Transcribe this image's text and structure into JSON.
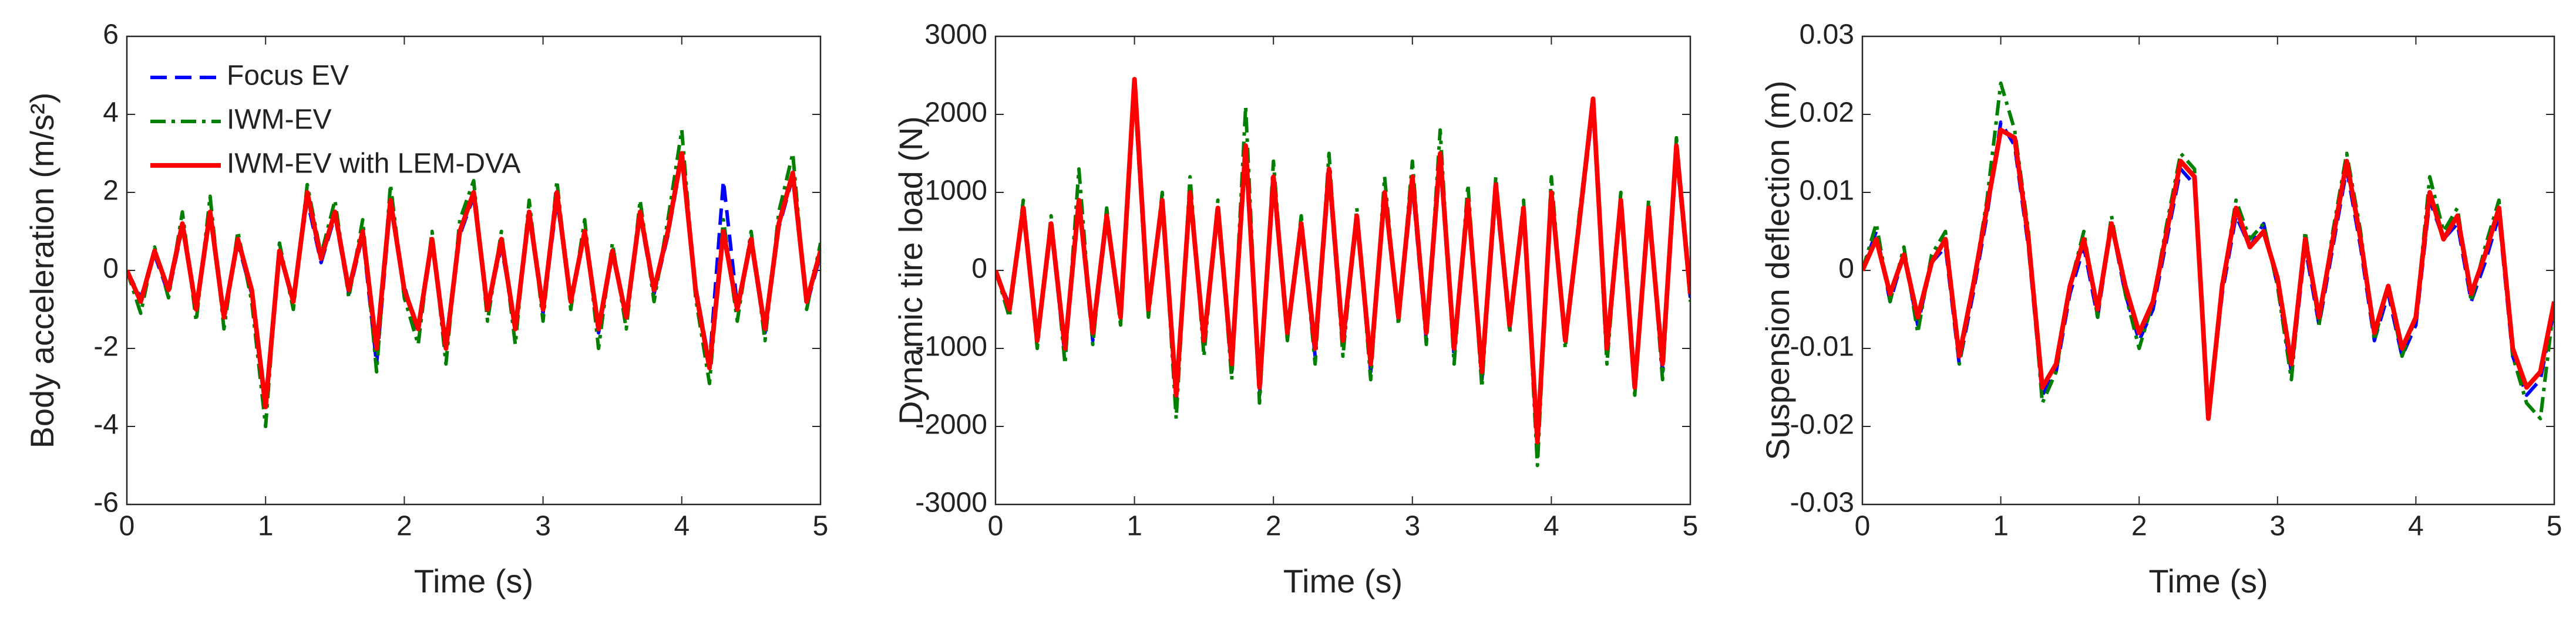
{
  "chart_data": [
    {
      "type": "line",
      "y_label": "Body acceleration (m/s²)",
      "x_label": "Time (s)",
      "xlim": [
        0,
        5
      ],
      "xticks": [
        0,
        1,
        2,
        3,
        4,
        5
      ],
      "ylim": [
        -6,
        6
      ],
      "yticks": [
        -6,
        -4,
        -2,
        0,
        2,
        4,
        6
      ],
      "legend": "upper left",
      "x": [
        0,
        0.1,
        0.2,
        0.3,
        0.4,
        0.5,
        0.6,
        0.7,
        0.8,
        0.9,
        1,
        1.1,
        1.2,
        1.3,
        1.4,
        1.5,
        1.6,
        1.7,
        1.8,
        1.9,
        2,
        2.1,
        2.2,
        2.3,
        2.4,
        2.5,
        2.6,
        2.7,
        2.8,
        2.9,
        3,
        3.1,
        3.2,
        3.3,
        3.4,
        3.5,
        3.6,
        3.7,
        3.8,
        3.9,
        4,
        4.1,
        4.2,
        4.3,
        4.4,
        4.5,
        4.6,
        4.7,
        4.8,
        4.9,
        5
      ],
      "series": [
        {
          "name": "Focus EV",
          "color": "#0000ff",
          "linestyle": "--",
          "values": [
            0,
            -0.7,
            0.4,
            -0.6,
            1.1,
            -0.9,
            1.4,
            -1.1,
            0.7,
            -0.6,
            -3.3,
            0.4,
            -0.7,
            1.8,
            0.2,
            1.4,
            -0.6,
            0.9,
            -2.4,
            1.7,
            -0.4,
            -1.6,
            0.7,
            -1.8,
            0.9,
            1.9,
            -0.9,
            0.6,
            -1.4,
            1.4,
            -1.1,
            1.8,
            -0.7,
            0.9,
            -1.6,
            0.4,
            -1.1,
            1.4,
            -0.6,
            0.9,
            2.9,
            -0.4,
            -2.4,
            2.3,
            -0.9,
            0.7,
            -1.6,
            1.1,
            2.4,
            -0.9,
            0.4
          ]
        },
        {
          "name": "IWM-EV",
          "color": "#008000",
          "linestyle": "-.",
          "values": [
            0,
            -1.1,
            0.6,
            -0.7,
            1.5,
            -1.3,
            1.9,
            -1.5,
            1.0,
            -0.8,
            -4.0,
            0.7,
            -1.0,
            2.2,
            0.4,
            1.8,
            -0.7,
            1.3,
            -2.6,
            2.2,
            -0.7,
            -1.9,
            1.0,
            -2.4,
            1.3,
            2.3,
            -1.3,
            1.0,
            -1.9,
            1.8,
            -1.3,
            2.3,
            -1.0,
            1.3,
            -2.0,
            0.7,
            -1.5,
            1.8,
            -0.8,
            1.3,
            3.6,
            -0.7,
            -2.9,
            1.3,
            -1.3,
            1.0,
            -1.8,
            1.5,
            3.0,
            -1.0,
            0.7
          ]
        },
        {
          "name": "IWM-EV with LEM-DVA",
          "color": "#ff0000",
          "linestyle": "-",
          "values": [
            0,
            -0.8,
            0.5,
            -0.5,
            1.2,
            -1.0,
            1.5,
            -1.2,
            0.8,
            -0.5,
            -3.5,
            0.5,
            -0.8,
            2.0,
            0.3,
            1.5,
            -0.5,
            1.0,
            -2.0,
            1.8,
            -0.5,
            -1.5,
            0.8,
            -2.0,
            1.0,
            2.0,
            -1.0,
            0.8,
            -1.5,
            1.5,
            -1.0,
            2.0,
            -0.8,
            1.0,
            -1.5,
            0.5,
            -1.2,
            1.5,
            -0.5,
            1.0,
            3.0,
            -0.5,
            -2.5,
            1.0,
            -1.0,
            0.8,
            -1.5,
            1.2,
            2.5,
            -0.8,
            0.5
          ]
        }
      ]
    },
    {
      "type": "line",
      "y_label": "Dynamic tire load (N)",
      "x_label": "Time (s)",
      "xlim": [
        0,
        5
      ],
      "xticks": [
        0,
        1,
        2,
        3,
        4,
        5
      ],
      "ylim": [
        -3000,
        3000
      ],
      "yticks": [
        -3000,
        -2000,
        -1000,
        0,
        1000,
        2000,
        3000
      ],
      "x": [
        0,
        0.1,
        0.2,
        0.3,
        0.4,
        0.5,
        0.6,
        0.7,
        0.8,
        0.9,
        1,
        1.1,
        1.2,
        1.3,
        1.4,
        1.5,
        1.6,
        1.7,
        1.8,
        1.9,
        2,
        2.1,
        2.2,
        2.3,
        2.4,
        2.5,
        2.6,
        2.7,
        2.8,
        2.9,
        3,
        3.1,
        3.2,
        3.3,
        3.4,
        3.5,
        3.6,
        3.7,
        3.8,
        3.9,
        4,
        4.1,
        4.2,
        4.3,
        4.4,
        4.5,
        4.6,
        4.7,
        4.8,
        4.9,
        5
      ],
      "series": [
        {
          "name": "Focus EV",
          "color": "#0000ff",
          "linestyle": "--",
          "values": [
            0,
            -450,
            750,
            -950,
            550,
            -1100,
            850,
            -900,
            650,
            -550,
            2300,
            -550,
            850,
            -1700,
            950,
            -950,
            750,
            -1300,
            1500,
            -1600,
            1100,
            -850,
            550,
            -1100,
            1200,
            -1000,
            650,
            -1300,
            950,
            -650,
            1100,
            -900,
            1400,
            -1100,
            850,
            -1400,
            1000,
            -750,
            750,
            -2100,
            950,
            -950,
            550,
            2100,
            -1100,
            850,
            -1400,
            750,
            -1300,
            1500,
            -350
          ]
        },
        {
          "name": "IWM-EV",
          "color": "#008000",
          "linestyle": "-.",
          "values": [
            0,
            -600,
            900,
            -1000,
            700,
            -1200,
            1300,
            -950,
            800,
            -700,
            2300,
            -600,
            1000,
            -1900,
            1200,
            -1100,
            900,
            -1400,
            2100,
            -1700,
            1400,
            -900,
            700,
            -1200,
            1500,
            -1100,
            800,
            -1400,
            1200,
            -700,
            1400,
            -950,
            1800,
            -1200,
            1100,
            -1500,
            1200,
            -800,
            900,
            -2500,
            1200,
            -1000,
            700,
            2200,
            -1200,
            1000,
            -1600,
            900,
            -1400,
            1700,
            -400
          ]
        },
        {
          "name": "IWM-EV with LEM-DVA",
          "color": "#ff0000",
          "linestyle": "-",
          "values": [
            0,
            -500,
            800,
            -900,
            600,
            -1000,
            900,
            -800,
            700,
            -600,
            2450,
            -500,
            900,
            -1600,
            1000,
            -900,
            800,
            -1200,
            1600,
            -1500,
            1200,
            -800,
            600,
            -1000,
            1300,
            -900,
            700,
            -1200,
            1000,
            -600,
            1200,
            -800,
            1500,
            -1000,
            900,
            -1300,
            1100,
            -700,
            800,
            -2200,
            1000,
            -900,
            600,
            2200,
            -1000,
            900,
            -1500,
            800,
            -1200,
            1600,
            -300
          ]
        }
      ]
    },
    {
      "type": "line",
      "y_label": "Suspension deflection (m)",
      "x_label": "Time (s)",
      "xlim": [
        0,
        5
      ],
      "xticks": [
        0,
        1,
        2,
        3,
        4,
        5
      ],
      "ylim": [
        -0.03,
        0.03
      ],
      "yticks": [
        -0.03,
        -0.02,
        -0.01,
        0,
        0.01,
        0.02,
        0.03
      ],
      "x": [
        0,
        0.1,
        0.2,
        0.3,
        0.4,
        0.5,
        0.6,
        0.7,
        0.8,
        0.9,
        1,
        1.1,
        1.2,
        1.3,
        1.4,
        1.5,
        1.6,
        1.7,
        1.8,
        1.9,
        2,
        2.1,
        2.2,
        2.3,
        2.4,
        2.5,
        2.6,
        2.7,
        2.8,
        2.9,
        3,
        3.1,
        3.2,
        3.3,
        3.4,
        3.5,
        3.6,
        3.7,
        3.8,
        3.9,
        4,
        4.1,
        4.2,
        4.3,
        4.4,
        4.5,
        4.6,
        4.7,
        4.8,
        4.9,
        5
      ],
      "series": [
        {
          "name": "Focus EV",
          "color": "#0000ff",
          "linestyle": "--",
          "values": [
            0,
            0.005,
            -0.004,
            0.002,
            -0.007,
            0.001,
            0.003,
            -0.012,
            -0.003,
            0.007,
            0.019,
            0.016,
            0.003,
            -0.016,
            -0.013,
            -0.003,
            0.003,
            -0.006,
            0.006,
            -0.003,
            -0.009,
            -0.005,
            0.004,
            0.013,
            0.011,
            -0.019,
            -0.003,
            0.007,
            0.003,
            0.006,
            -0.002,
            -0.013,
            0.003,
            -0.007,
            0.003,
            0.013,
            0.003,
            -0.009,
            -0.003,
            -0.011,
            -0.007,
            0.009,
            0.004,
            0.006,
            -0.004,
            0.001,
            0.007,
            -0.011,
            -0.016,
            -0.014,
            -0.005
          ]
        },
        {
          "name": "IWM-EV",
          "color": "#008000",
          "linestyle": "-.",
          "values": [
            0,
            0.006,
            -0.004,
            0.003,
            -0.008,
            0.002,
            0.005,
            -0.012,
            -0.002,
            0.009,
            0.024,
            0.018,
            0.005,
            -0.017,
            -0.013,
            -0.002,
            0.005,
            -0.006,
            0.007,
            -0.003,
            -0.01,
            -0.004,
            0.006,
            0.015,
            0.013,
            -0.019,
            -0.002,
            0.009,
            0.004,
            0.006,
            -0.002,
            -0.014,
            0.005,
            -0.007,
            0.005,
            0.015,
            0.005,
            -0.009,
            -0.002,
            -0.011,
            -0.006,
            0.012,
            0.005,
            0.008,
            -0.004,
            0.003,
            0.009,
            -0.011,
            -0.017,
            -0.019,
            -0.004
          ]
        },
        {
          "name": "IWM-EV with LEM-DVA",
          "color": "#ff0000",
          "linestyle": "-",
          "values": [
            0,
            0.004,
            -0.003,
            0.002,
            -0.006,
            0.001,
            0.004,
            -0.011,
            -0.002,
            0.008,
            0.018,
            0.017,
            0.004,
            -0.015,
            -0.012,
            -0.002,
            0.004,
            -0.005,
            0.006,
            -0.002,
            -0.008,
            -0.004,
            0.005,
            0.014,
            0.012,
            -0.019,
            -0.002,
            0.008,
            0.003,
            0.005,
            -0.001,
            -0.012,
            0.004,
            -0.006,
            0.004,
            0.014,
            0.004,
            -0.008,
            -0.002,
            -0.01,
            -0.006,
            0.01,
            0.004,
            0.007,
            -0.003,
            0.002,
            0.008,
            -0.01,
            -0.015,
            -0.013,
            -0.004
          ]
        }
      ]
    }
  ]
}
